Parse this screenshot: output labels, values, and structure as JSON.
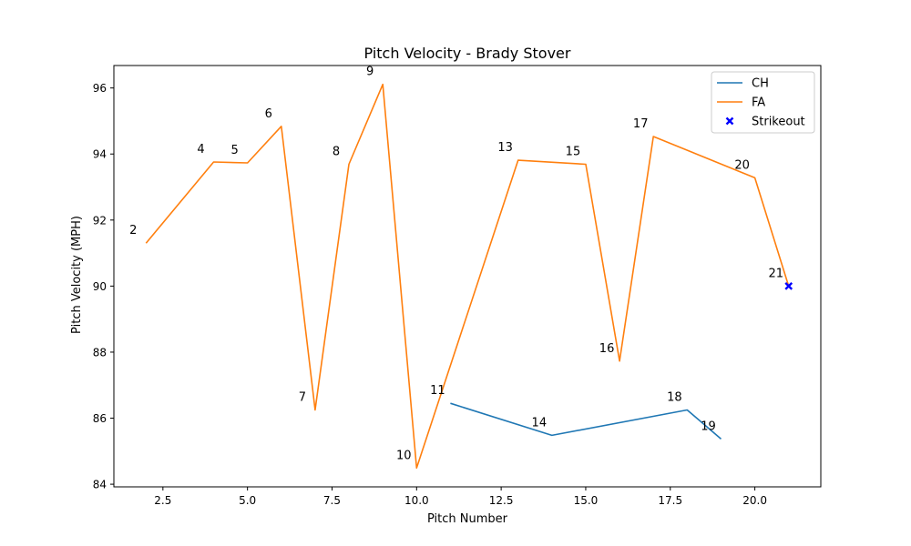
{
  "chart_data": {
    "type": "line",
    "title": "Pitch Velocity - Brady Stover",
    "xlabel": "Pitch Number",
    "ylabel": "Pitch Velocity (MPH)",
    "xlim": [
      1.05,
      21.95
    ],
    "ylim": [
      83.92,
      96.68
    ],
    "xticks": [
      2.5,
      5.0,
      7.5,
      10.0,
      12.5,
      15.0,
      17.5,
      20.0
    ],
    "xtick_labels": [
      "2.5",
      "5.0",
      "7.5",
      "10.0",
      "12.5",
      "15.0",
      "17.5",
      "20.0"
    ],
    "yticks": [
      84,
      86,
      88,
      90,
      92,
      94,
      96
    ],
    "ytick_labels": [
      "84",
      "86",
      "88",
      "90",
      "92",
      "94",
      "96"
    ],
    "grid": false,
    "legend_position": "top-right",
    "series": [
      {
        "name": "CH",
        "color": "#1f77b4",
        "x": [
          11,
          14,
          18,
          19
        ],
        "y": [
          86.45,
          85.48,
          86.25,
          85.37
        ]
      },
      {
        "name": "FA",
        "color": "#ff7f0e",
        "x": [
          2,
          4,
          5,
          6,
          7,
          8,
          9,
          10,
          13,
          15,
          16,
          17,
          20,
          21
        ],
        "y": [
          91.3,
          93.76,
          93.73,
          94.84,
          86.25,
          93.69,
          96.11,
          84.49,
          93.81,
          93.69,
          87.73,
          94.53,
          93.28,
          90.0
        ]
      }
    ],
    "strikeouts": {
      "name": "Strikeout",
      "color": "#0000ff",
      "marker": "x",
      "points": [
        {
          "x": 21,
          "y": 90.0
        }
      ]
    },
    "annotations": [
      {
        "text": "2",
        "x": 2,
        "y": 91.3
      },
      {
        "text": "4",
        "x": 4,
        "y": 93.76
      },
      {
        "text": "5",
        "x": 5,
        "y": 93.73
      },
      {
        "text": "6",
        "x": 6,
        "y": 94.84
      },
      {
        "text": "7",
        "x": 7,
        "y": 86.25
      },
      {
        "text": "8",
        "x": 8,
        "y": 93.69
      },
      {
        "text": "9",
        "x": 9,
        "y": 96.11
      },
      {
        "text": "10",
        "x": 10,
        "y": 84.49
      },
      {
        "text": "11",
        "x": 11,
        "y": 86.45
      },
      {
        "text": "13",
        "x": 13,
        "y": 93.81
      },
      {
        "text": "14",
        "x": 14,
        "y": 85.48
      },
      {
        "text": "15",
        "x": 15,
        "y": 93.69
      },
      {
        "text": "16",
        "x": 16,
        "y": 87.73
      },
      {
        "text": "17",
        "x": 17,
        "y": 94.53
      },
      {
        "text": "18",
        "x": 18,
        "y": 86.25
      },
      {
        "text": "19",
        "x": 19,
        "y": 85.37
      },
      {
        "text": "20",
        "x": 20,
        "y": 93.28
      },
      {
        "text": "21",
        "x": 21,
        "y": 90.0
      }
    ]
  }
}
